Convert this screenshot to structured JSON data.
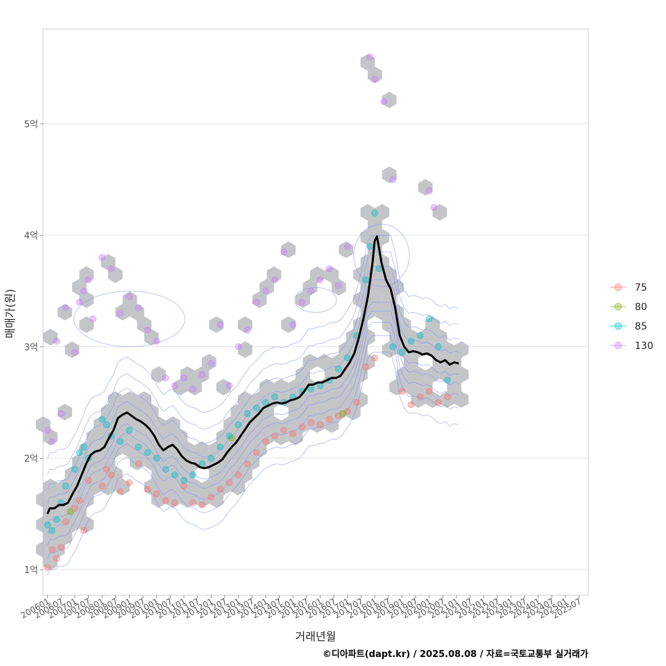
{
  "chart_data": {
    "type": "scatter",
    "title": "",
    "xlabel": "거래년월",
    "ylabel": "매매가(원)",
    "caption": "©디아파트(dapt.kr) / 2025.08.08 / 자료=국토교통부 실거래가",
    "y_unit": "억",
    "ylim": [
      0.77,
      5.85
    ],
    "y_ticks": [
      {
        "value": 1,
        "label": "1억"
      },
      {
        "value": 2,
        "label": "2억"
      },
      {
        "value": 3,
        "label": "3억"
      },
      {
        "value": 4,
        "label": "4억"
      },
      {
        "value": 5,
        "label": "5억"
      }
    ],
    "x_ticks": [
      "200601",
      "200607",
      "200701",
      "200707",
      "200801",
      "200807",
      "200901",
      "200907",
      "201001",
      "201007",
      "201101",
      "201107",
      "201201",
      "201207",
      "201301",
      "201307",
      "201401",
      "201407",
      "201501",
      "201507",
      "201601",
      "201607",
      "201701",
      "201707",
      "201801",
      "201807",
      "201901",
      "201907",
      "202001",
      "202007",
      "202101",
      "202107",
      "202201",
      "202207",
      "202301",
      "202307",
      "202401",
      "202407",
      "202501",
      "202507"
    ],
    "xlim": [
      "200511",
      "202511"
    ],
    "legend": {
      "title": "",
      "position": "right",
      "entries": [
        {
          "label": "75",
          "color": "#f8766d"
        },
        {
          "label": "80",
          "color": "#7cae00"
        },
        {
          "label": "85",
          "color": "#00bfc4"
        },
        {
          "label": "130",
          "color": "#c77cff"
        }
      ]
    },
    "colors": {
      "hex": "#a9adb2",
      "contour": "#7f8ff0",
      "trend": "#000000",
      "grid": "#e3e3e3",
      "frame": "#cccccc"
    },
    "trend_line": {
      "name": "moving average",
      "points": [
        [
          "200601",
          1.5
        ],
        [
          "200602",
          1.55
        ],
        [
          "200604",
          1.55
        ],
        [
          "200606",
          1.58
        ],
        [
          "200608",
          1.58
        ],
        [
          "200610",
          1.6
        ],
        [
          "200612",
          1.68
        ],
        [
          "200702",
          1.75
        ],
        [
          "200704",
          1.85
        ],
        [
          "200706",
          1.95
        ],
        [
          "200708",
          2.03
        ],
        [
          "200710",
          2.06
        ],
        [
          "200712",
          2.07
        ],
        [
          "200802",
          2.1
        ],
        [
          "200804",
          2.18
        ],
        [
          "200806",
          2.25
        ],
        [
          "200808",
          2.36
        ],
        [
          "200810",
          2.39
        ],
        [
          "200812",
          2.41
        ],
        [
          "200902",
          2.38
        ],
        [
          "200904",
          2.35
        ],
        [
          "200906",
          2.33
        ],
        [
          "200908",
          2.3
        ],
        [
          "200910",
          2.26
        ],
        [
          "200912",
          2.2
        ],
        [
          "201002",
          2.12
        ],
        [
          "201004",
          2.07
        ],
        [
          "201006",
          2.1
        ],
        [
          "201008",
          2.12
        ],
        [
          "201010",
          2.08
        ],
        [
          "201012",
          2.02
        ],
        [
          "201102",
          1.98
        ],
        [
          "201104",
          1.96
        ],
        [
          "201106",
          1.95
        ],
        [
          "201108",
          1.92
        ],
        [
          "201110",
          1.91
        ],
        [
          "201112",
          1.92
        ],
        [
          "201202",
          1.94
        ],
        [
          "201204",
          1.96
        ],
        [
          "201206",
          1.99
        ],
        [
          "201208",
          2.05
        ],
        [
          "201210",
          2.1
        ],
        [
          "201212",
          2.14
        ],
        [
          "201302",
          2.2
        ],
        [
          "201304",
          2.26
        ],
        [
          "201306",
          2.32
        ],
        [
          "201308",
          2.36
        ],
        [
          "201310",
          2.4
        ],
        [
          "201312",
          2.45
        ],
        [
          "201402",
          2.47
        ],
        [
          "201404",
          2.49
        ],
        [
          "201406",
          2.5
        ],
        [
          "201408",
          2.49
        ],
        [
          "201410",
          2.5
        ],
        [
          "201412",
          2.52
        ],
        [
          "201502",
          2.53
        ],
        [
          "201504",
          2.55
        ],
        [
          "201506",
          2.6
        ],
        [
          "201508",
          2.66
        ],
        [
          "201510",
          2.66
        ],
        [
          "201512",
          2.68
        ],
        [
          "201602",
          2.68
        ],
        [
          "201604",
          2.7
        ],
        [
          "201606",
          2.72
        ],
        [
          "201608",
          2.72
        ],
        [
          "201610",
          2.74
        ],
        [
          "201612",
          2.8
        ],
        [
          "201702",
          2.86
        ],
        [
          "201704",
          2.94
        ],
        [
          "201706",
          3.08
        ],
        [
          "201708",
          3.25
        ],
        [
          "201710",
          3.45
        ],
        [
          "201712",
          3.75
        ],
        [
          "201801",
          3.95
        ],
        [
          "201802",
          3.99
        ],
        [
          "201804",
          3.75
        ],
        [
          "201806",
          3.6
        ],
        [
          "201808",
          3.52
        ],
        [
          "201810",
          3.35
        ],
        [
          "201812",
          3.1
        ],
        [
          "201902",
          3.0
        ],
        [
          "201904",
          2.95
        ],
        [
          "201906",
          2.96
        ],
        [
          "201908",
          2.95
        ],
        [
          "201910",
          2.93
        ],
        [
          "201912",
          2.94
        ],
        [
          "202002",
          2.92
        ],
        [
          "202004",
          2.88
        ],
        [
          "202006",
          2.86
        ],
        [
          "202008",
          2.88
        ],
        [
          "202010",
          2.84
        ],
        [
          "202012",
          2.86
        ],
        [
          "202102",
          2.85
        ]
      ]
    },
    "series": [
      {
        "name": "75",
        "points": [
          [
            "200601",
            1.02
          ],
          [
            "200603",
            1.18
          ],
          [
            "200605",
            1.1
          ],
          [
            "200607",
            1.2
          ],
          [
            "200609",
            1.43
          ],
          [
            "200701",
            1.55
          ],
          [
            "200703",
            1.62
          ],
          [
            "200705",
            1.35
          ],
          [
            "200707",
            1.8
          ],
          [
            "200801",
            1.75
          ],
          [
            "200803",
            1.9
          ],
          [
            "200805",
            1.85
          ],
          [
            "200809",
            1.7
          ],
          [
            "200901",
            1.78
          ],
          [
            "200905",
            1.95
          ],
          [
            "200909",
            1.72
          ],
          [
            "201001",
            1.68
          ],
          [
            "201005",
            1.62
          ],
          [
            "201009",
            1.6
          ],
          [
            "201101",
            1.75
          ],
          [
            "201105",
            1.6
          ],
          [
            "201109",
            1.58
          ],
          [
            "201201",
            1.65
          ],
          [
            "201205",
            1.72
          ],
          [
            "201209",
            1.78
          ],
          [
            "201301",
            1.85
          ],
          [
            "201305",
            1.95
          ],
          [
            "201309",
            2.05
          ],
          [
            "201401",
            2.15
          ],
          [
            "201405",
            2.2
          ],
          [
            "201409",
            2.25
          ],
          [
            "201501",
            2.22
          ],
          [
            "201505",
            2.28
          ],
          [
            "201509",
            2.32
          ],
          [
            "201601",
            2.3
          ],
          [
            "201605",
            2.35
          ],
          [
            "201609",
            2.38
          ],
          [
            "201701",
            2.42
          ],
          [
            "201705",
            2.5
          ],
          [
            "201709",
            2.82
          ],
          [
            "201801",
            2.9
          ],
          [
            "201901",
            2.6
          ],
          [
            "201905",
            2.48
          ],
          [
            "201909",
            2.55
          ],
          [
            "202001",
            2.6
          ],
          [
            "202005",
            2.5
          ],
          [
            "202009",
            2.55
          ]
        ]
      },
      {
        "name": "80",
        "points": [
          [
            "200611",
            1.52
          ],
          [
            "201210",
            2.18
          ],
          [
            "201611",
            2.4
          ]
        ]
      },
      {
        "name": "85",
        "points": [
          [
            "200601",
            1.4
          ],
          [
            "200603",
            1.35
          ],
          [
            "200605",
            1.45
          ],
          [
            "200607",
            1.6
          ],
          [
            "200609",
            1.75
          ],
          [
            "200701",
            1.9
          ],
          [
            "200703",
            2.05
          ],
          [
            "200705",
            2.1
          ],
          [
            "200707",
            2.0
          ],
          [
            "200801",
            2.35
          ],
          [
            "200803",
            2.3
          ],
          [
            "200805",
            2.2
          ],
          [
            "200809",
            2.15
          ],
          [
            "200901",
            2.25
          ],
          [
            "200905",
            2.1
          ],
          [
            "200909",
            2.05
          ],
          [
            "201001",
            2.0
          ],
          [
            "201005",
            1.9
          ],
          [
            "201009",
            1.85
          ],
          [
            "201101",
            1.8
          ],
          [
            "201105",
            1.85
          ],
          [
            "201109",
            1.95
          ],
          [
            "201201",
            2.0
          ],
          [
            "201205",
            2.1
          ],
          [
            "201209",
            2.2
          ],
          [
            "201301",
            2.3
          ],
          [
            "201305",
            2.4
          ],
          [
            "201309",
            2.45
          ],
          [
            "201401",
            2.5
          ],
          [
            "201405",
            2.55
          ],
          [
            "201409",
            2.5
          ],
          [
            "201501",
            2.55
          ],
          [
            "201505",
            2.6
          ],
          [
            "201509",
            2.62
          ],
          [
            "201601",
            2.65
          ],
          [
            "201605",
            2.7
          ],
          [
            "201609",
            2.8
          ],
          [
            "201701",
            2.9
          ],
          [
            "201705",
            3.1
          ],
          [
            "201709",
            3.6
          ],
          [
            "201711",
            3.9
          ],
          [
            "201801",
            4.2
          ],
          [
            "201803",
            3.7
          ],
          [
            "201809",
            3.0
          ],
          [
            "201901",
            2.95
          ],
          [
            "201905",
            3.05
          ],
          [
            "201909",
            3.1
          ],
          [
            "202001",
            3.25
          ],
          [
            "202005",
            3.0
          ],
          [
            "202009",
            2.7
          ]
        ]
      },
      {
        "name": "130",
        "points": [
          [
            "200601",
            2.25
          ],
          [
            "200603",
            2.15
          ],
          [
            "200605",
            3.05
          ],
          [
            "200607",
            2.4
          ],
          [
            "200609",
            3.35
          ],
          [
            "200701",
            2.95
          ],
          [
            "200703",
            3.4
          ],
          [
            "200705",
            3.5
          ],
          [
            "200707",
            3.6
          ],
          [
            "200709",
            3.25
          ],
          [
            "200801",
            3.8
          ],
          [
            "200805",
            3.7
          ],
          [
            "200809",
            3.3
          ],
          [
            "200901",
            3.45
          ],
          [
            "200905",
            3.35
          ],
          [
            "200909",
            3.15
          ],
          [
            "201001",
            3.05
          ],
          [
            "201005",
            2.72
          ],
          [
            "201009",
            2.65
          ],
          [
            "201101",
            2.72
          ],
          [
            "201105",
            2.62
          ],
          [
            "201109",
            2.75
          ],
          [
            "201201",
            2.85
          ],
          [
            "201205",
            3.2
          ],
          [
            "201209",
            2.65
          ],
          [
            "201301",
            3.0
          ],
          [
            "201305",
            3.15
          ],
          [
            "201309",
            3.4
          ],
          [
            "201401",
            3.5
          ],
          [
            "201405",
            3.6
          ],
          [
            "201409",
            3.85
          ],
          [
            "201501",
            3.2
          ],
          [
            "201505",
            3.4
          ],
          [
            "201509",
            3.5
          ],
          [
            "201601",
            3.6
          ],
          [
            "201605",
            3.7
          ],
          [
            "201609",
            3.55
          ],
          [
            "201701",
            3.9
          ],
          [
            "201711",
            5.6
          ],
          [
            "201801",
            5.4
          ],
          [
            "201805",
            5.2
          ],
          [
            "201809",
            4.5
          ],
          [
            "202001",
            4.4
          ],
          [
            "202003",
            4.25
          ]
        ]
      }
    ]
  }
}
